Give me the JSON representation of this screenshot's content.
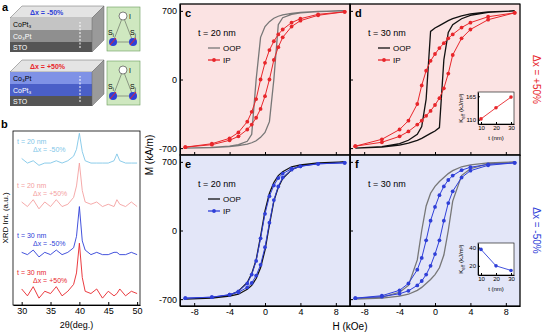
{
  "figure": {
    "ylabel": "M (kA/m)",
    "xlabel": "H (kOe)"
  },
  "schematic": {
    "panel": "a",
    "stacks": [
      {
        "upper": "CoPt₃",
        "lower": "Co₃Pt",
        "substrate": "STO",
        "strain": "Δx = -50%",
        "color": "#2f3fd8"
      },
      {
        "upper": "Co₃Pt",
        "lower": "CoPt₃",
        "substrate": "STO",
        "strain": "Δx = +50%",
        "color": "#e8262b"
      }
    ],
    "spin": "S",
    "spin_subs": [
      "i",
      "j"
    ],
    "ion": "I"
  },
  "chart_data": [
    {
      "type": "line",
      "panel": "b",
      "xlabel": "2θ(deg.)",
      "ylabel": "XRD Int. (a.u.)",
      "x": [
        30,
        31,
        32,
        33,
        34,
        35,
        36,
        37,
        38,
        39,
        39.5,
        40,
        40.5,
        41,
        42,
        43,
        44,
        45,
        46,
        46.5,
        47,
        48,
        49,
        50
      ],
      "xlim": [
        28.5,
        50.5
      ],
      "xticks": [
        30,
        35,
        40,
        45,
        50
      ],
      "ylim": [
        0.2,
        4.0
      ],
      "tick_labels": "x",
      "series": [
        {
          "label": [
            "t = 20 nm",
            "Δx = -50%"
          ],
          "color": "#7fc6e8",
          "values": [
            3.4,
            3.3,
            3.35,
            3.25,
            3.3,
            3.3,
            3.35,
            3.3,
            3.35,
            3.45,
            3.6,
            3.95,
            3.55,
            3.35,
            3.3,
            3.3,
            3.3,
            3.3,
            3.35,
            3.5,
            3.35,
            3.3,
            3.3,
            3.3
          ]
        },
        {
          "label": [
            "t = 20 nm",
            "Δx = +50%"
          ],
          "color": "#f4a0a0",
          "values": [
            2.45,
            2.35,
            2.5,
            2.3,
            2.45,
            2.35,
            2.5,
            2.35,
            2.4,
            2.55,
            2.8,
            3.3,
            2.7,
            2.45,
            2.4,
            2.45,
            2.35,
            2.4,
            2.35,
            2.5,
            2.4,
            2.35,
            2.45,
            2.35
          ]
        },
        {
          "label": [
            "t = 30 nm",
            "Δx = -50%"
          ],
          "color": "#2f3fd8",
          "values": [
            1.35,
            1.3,
            1.4,
            1.25,
            1.35,
            1.3,
            1.4,
            1.3,
            1.35,
            1.45,
            1.7,
            2.35,
            1.6,
            1.4,
            1.3,
            1.35,
            1.3,
            1.3,
            1.35,
            1.35,
            1.3,
            1.3,
            1.35,
            1.3
          ]
        },
        {
          "label": [
            "t = 30 nm",
            "Δx = +50%"
          ],
          "color": "#e8262b",
          "values": [
            0.55,
            0.4,
            0.6,
            0.35,
            0.5,
            0.45,
            0.6,
            0.4,
            0.5,
            0.65,
            0.9,
            1.55,
            0.8,
            0.5,
            0.45,
            0.55,
            0.35,
            0.5,
            0.4,
            0.45,
            0.55,
            0.4,
            0.5,
            0.45
          ]
        }
      ]
    },
    {
      "type": "line",
      "panel": "c",
      "annotation": "t = 20 nm",
      "legend": "upper left",
      "tick_labels": "y",
      "x": [
        9,
        6,
        4,
        3,
        2,
        1.5,
        1,
        0.5,
        0,
        -0.5,
        -1,
        -1.5,
        -2,
        -3,
        -4,
        -6,
        -9,
        -9,
        -6,
        -4,
        -3,
        -2,
        -1.5,
        -1,
        -0.5,
        0,
        0.5,
        1,
        1.5,
        2,
        3,
        4,
        6,
        9
      ],
      "xlim": [
        -9.6,
        9.6
      ],
      "xticks": [
        -8,
        -4,
        0,
        4,
        8
      ],
      "ylim": [
        -770,
        770
      ],
      "yticks": [
        -700,
        0,
        700
      ],
      "series": [
        {
          "name": "OOP",
          "color": "#777777",
          "values": [
            700,
            695,
            685,
            675,
            660,
            645,
            625,
            590,
            540,
            430,
            0,
            -560,
            -630,
            -665,
            -680,
            -693,
            -700,
            -700,
            -695,
            -685,
            -675,
            -660,
            -645,
            -625,
            -590,
            -540,
            -430,
            0,
            560,
            630,
            665,
            680,
            693,
            700
          ]
        },
        {
          "name": "IP",
          "color": "#e8262b",
          "marker": "circle",
          "values": [
            690,
            665,
            620,
            580,
            510,
            460,
            390,
            300,
            170,
            0,
            -200,
            -330,
            -430,
            -540,
            -600,
            -655,
            -690,
            -690,
            -665,
            -620,
            -580,
            -510,
            -460,
            -390,
            -300,
            -170,
            0,
            200,
            330,
            430,
            540,
            600,
            655,
            690
          ]
        }
      ]
    },
    {
      "type": "line",
      "panel": "d",
      "annotation": "t = 30 nm",
      "legend": "upper left",
      "tick_labels": false,
      "side_label": {
        "text": "Δx = +50%",
        "color": "#e8262b"
      },
      "x": [
        9,
        6,
        4,
        3,
        2,
        1.5,
        1,
        0.5,
        0,
        -0.5,
        -1,
        -1.5,
        -2,
        -3,
        -4,
        -6,
        -9,
        -9,
        -6,
        -4,
        -3,
        -2,
        -1.5,
        -1,
        -0.5,
        0,
        0.5,
        1,
        1.5,
        2,
        3,
        4,
        6,
        9
      ],
      "xlim": [
        -9.6,
        9.6
      ],
      "xticks": [
        -8,
        -4,
        0,
        4,
        8
      ],
      "ylim": [
        -770,
        770
      ],
      "yticks": [
        -700,
        0,
        700
      ],
      "series": [
        {
          "name": "OOP",
          "color": "#111111",
          "values": [
            700,
            690,
            670,
            650,
            620,
            600,
            575,
            550,
            525,
            490,
            -200,
            -480,
            -560,
            -620,
            -655,
            -685,
            -700,
            -700,
            -690,
            -670,
            -650,
            -620,
            -600,
            -575,
            -550,
            -525,
            -490,
            200,
            480,
            560,
            620,
            655,
            685,
            700
          ]
        },
        {
          "name": "IP",
          "color": "#e8262b",
          "marker": "circle",
          "values": [
            680,
            640,
            580,
            530,
            460,
            420,
            370,
            320,
            260,
            190,
            90,
            -60,
            -250,
            -420,
            -510,
            -610,
            -680,
            -680,
            -640,
            -580,
            -530,
            -460,
            -420,
            -370,
            -320,
            -260,
            -190,
            -90,
            60,
            250,
            420,
            510,
            610,
            680
          ]
        }
      ],
      "inset": {
        "type": "line",
        "xlabel": "t (nm)",
        "ylabel": [
          "K",
          "eff",
          " (kJ/m³)"
        ],
        "x": [
          10,
          20,
          30
        ],
        "xlim": [
          8,
          32
        ],
        "xticks": [
          10,
          20,
          30
        ],
        "ylim": [
          100,
          175
        ],
        "yticks": [
          110,
          165
        ],
        "series": [
          {
            "color": "#e8262b",
            "marker": "circle",
            "values": [
              112,
              138,
              163
            ]
          }
        ]
      }
    },
    {
      "type": "line",
      "panel": "e",
      "annotation": "t = 20 nm",
      "legend": "upper left",
      "tick_labels": true,
      "x": [
        9,
        6,
        4,
        3,
        2,
        1.5,
        1,
        0.5,
        0,
        -0.5,
        -1,
        -1.5,
        -2,
        -3,
        -4,
        -6,
        -9,
        -9,
        -6,
        -4,
        -3,
        -2,
        -1.5,
        -1,
        -0.5,
        0,
        0.5,
        1,
        1.5,
        2,
        3,
        4,
        6,
        9
      ],
      "xlim": [
        -9.6,
        9.6
      ],
      "xticks": [
        -8,
        -4,
        0,
        4,
        8
      ],
      "ylim": [
        -770,
        770
      ],
      "yticks": [
        -700,
        0,
        700
      ],
      "series": [
        {
          "name": "OOP",
          "color": "#111111",
          "values": [
            700,
            690,
            670,
            650,
            600,
            560,
            490,
            380,
            200,
            -60,
            -300,
            -440,
            -530,
            -620,
            -660,
            -688,
            -700,
            -700,
            -690,
            -670,
            -650,
            -600,
            -560,
            -490,
            -380,
            -200,
            60,
            300,
            440,
            530,
            620,
            660,
            688,
            700
          ]
        },
        {
          "name": "IP",
          "color": "#2f3fd8",
          "marker": "circle",
          "values": [
            690,
            680,
            655,
            630,
            580,
            535,
            460,
            350,
            170,
            -80,
            -310,
            -450,
            -540,
            -620,
            -655,
            -680,
            -690,
            -690,
            -680,
            -655,
            -630,
            -580,
            -535,
            -460,
            -350,
            -170,
            80,
            310,
            450,
            540,
            620,
            655,
            680,
            690
          ]
        }
      ]
    },
    {
      "type": "line",
      "panel": "f",
      "annotation": "t = 30 nm",
      "tick_labels": "x",
      "side_label": {
        "text": "Δx = -50%",
        "color": "#2f3fd8"
      },
      "x": [
        9,
        6,
        4,
        3,
        2,
        1.5,
        1,
        0.5,
        0,
        -0.5,
        -1,
        -1.5,
        -2,
        -3,
        -4,
        -6,
        -9,
        -9,
        -6,
        -4,
        -3,
        -2,
        -1.5,
        -1,
        -0.5,
        0,
        0.5,
        1,
        1.5,
        2,
        3,
        4,
        6,
        9
      ],
      "xlim": [
        -9.6,
        9.6
      ],
      "xticks": [
        -8,
        -4,
        0,
        4,
        8
      ],
      "ylim": [
        -770,
        770
      ],
      "yticks": [
        -700,
        0,
        700
      ],
      "series": [
        {
          "name": "OOP",
          "color": "#777777",
          "values": [
            700,
            690,
            670,
            650,
            610,
            580,
            540,
            500,
            450,
            380,
            250,
            0,
            -300,
            -560,
            -630,
            -680,
            -700,
            -700,
            -690,
            -670,
            -650,
            -610,
            -580,
            -540,
            -500,
            -450,
            -380,
            -250,
            0,
            300,
            560,
            630,
            680,
            700
          ]
        },
        {
          "name": "IP",
          "color": "#2f3fd8",
          "marker": "circle",
          "values": [
            690,
            675,
            645,
            615,
            560,
            515,
            450,
            360,
            240,
            100,
            -100,
            -280,
            -400,
            -540,
            -610,
            -665,
            -690,
            -690,
            -675,
            -645,
            -615,
            -560,
            -515,
            -450,
            -360,
            -240,
            -100,
            100,
            280,
            400,
            540,
            610,
            665,
            690
          ]
        }
      ],
      "inset": {
        "type": "line",
        "xlabel": "t (nm)",
        "ylabel": [
          "K",
          "eff",
          " (kJ/m³)"
        ],
        "x": [
          10,
          20,
          30
        ],
        "xlim": [
          8,
          32
        ],
        "xticks": [
          10,
          20,
          30
        ],
        "ylim": [
          10,
          45
        ],
        "yticks": [
          20,
          40
        ],
        "series": [
          {
            "color": "#2f3fd8",
            "marker": "circle",
            "values": [
              38,
              20,
              15
            ]
          }
        ]
      }
    }
  ]
}
